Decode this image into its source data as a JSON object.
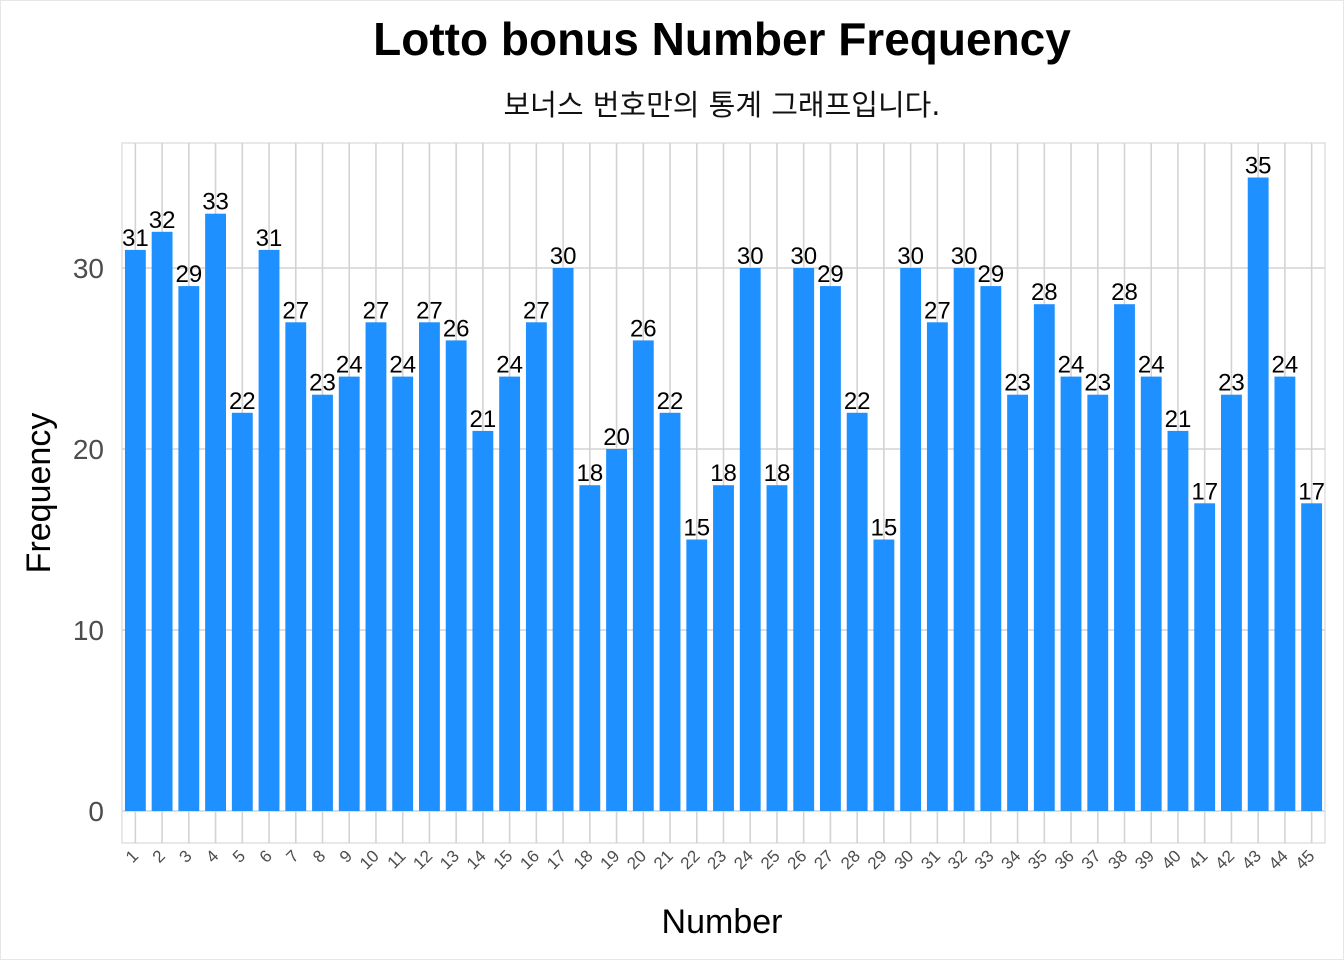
{
  "chart_data": {
    "type": "bar",
    "title": "Lotto bonus Number Frequency",
    "subtitle": "보너스 번호만의 통계 그래프입니다.",
    "xlabel": "Number",
    "ylabel": "Frequency",
    "ylim": [
      0,
      37
    ],
    "yticks": [
      0,
      10,
      20,
      30
    ],
    "categories": [
      "1",
      "2",
      "3",
      "4",
      "5",
      "6",
      "7",
      "8",
      "9",
      "10",
      "11",
      "12",
      "13",
      "14",
      "15",
      "16",
      "17",
      "18",
      "19",
      "20",
      "21",
      "22",
      "23",
      "24",
      "25",
      "26",
      "27",
      "28",
      "29",
      "30",
      "31",
      "32",
      "33",
      "34",
      "35",
      "36",
      "37",
      "38",
      "39",
      "40",
      "41",
      "42",
      "43",
      "44",
      "45"
    ],
    "values": [
      31,
      32,
      29,
      33,
      22,
      31,
      27,
      23,
      24,
      27,
      24,
      27,
      26,
      21,
      24,
      27,
      30,
      18,
      20,
      26,
      22,
      15,
      18,
      30,
      18,
      30,
      29,
      22,
      15,
      30,
      27,
      30,
      29,
      23,
      28,
      24,
      23,
      28,
      24,
      21,
      17,
      23,
      35,
      24,
      17
    ],
    "bar_color": "#1E90FF",
    "grid": true
  }
}
